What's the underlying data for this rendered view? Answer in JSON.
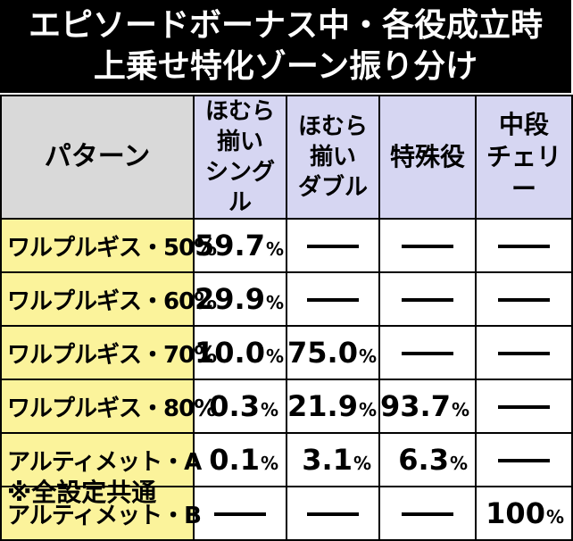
{
  "title": {
    "line1": "エピソードボーナス中・各役成立時",
    "line2": "上乗せ特化ゾーン振り分け"
  },
  "table": {
    "headers": {
      "pattern": "パターン",
      "col1_line1": "ほむら揃い",
      "col1_line2": "シングル",
      "col2_line1": "ほむら揃い",
      "col2_line2": "ダブル",
      "col3_line1": "特殊役",
      "col4_line1": "中段",
      "col4_line2": "チェリー"
    },
    "rows": [
      {
        "label": "ワルプルギス・50%",
        "c1": "59.7",
        "c2": "—",
        "c3": "—",
        "c4": "—"
      },
      {
        "label": "ワルプルギス・60%",
        "c1": "29.9",
        "c2": "—",
        "c3": "—",
        "c4": "—"
      },
      {
        "label": "ワルプルギス・70%",
        "c1": "10.0",
        "c2": "75.0",
        "c3": "—",
        "c4": "—"
      },
      {
        "label": "ワルプルギス・80%",
        "c1": "0.3",
        "c2": "21.9",
        "c3": "93.7",
        "c4": "—"
      },
      {
        "label": "アルティメット・A",
        "c1": "0.1",
        "c2": "3.1",
        "c3": "6.3",
        "c4": "—"
      },
      {
        "label": "アルティメット・B",
        "c1": "—",
        "c2": "—",
        "c3": "—",
        "c4": "100"
      }
    ],
    "percent_sign": "%"
  },
  "note": "※全設定共通"
}
